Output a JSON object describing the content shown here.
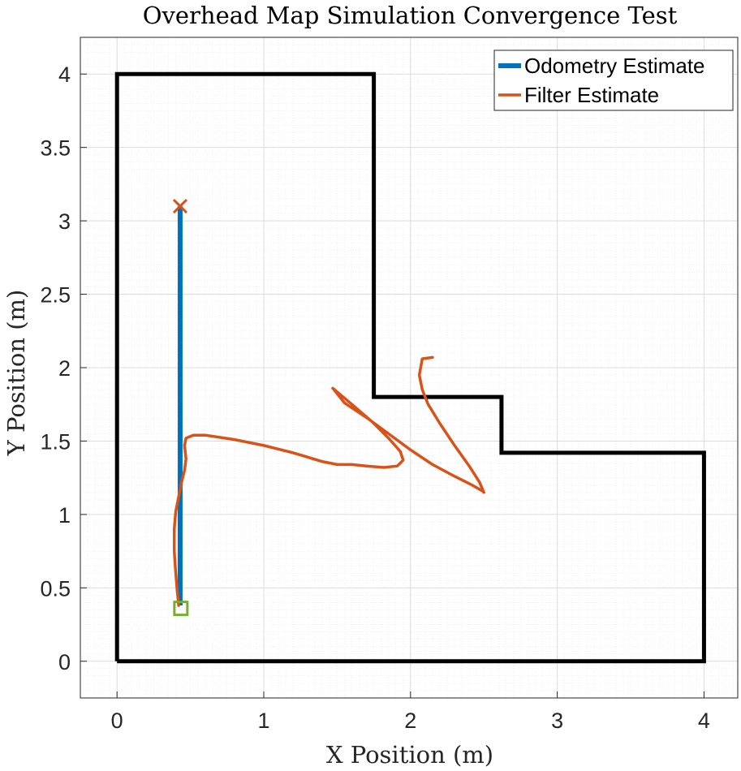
{
  "chart_data": {
    "type": "line",
    "title": "Overhead Map Simulation Convergence Test",
    "xlabel": "X Position (m)",
    "ylabel": "Y Position (m)",
    "xlim": [
      -0.25,
      4.23
    ],
    "ylim": [
      -0.25,
      4.25
    ],
    "xticks": [
      0,
      1,
      2,
      3,
      4
    ],
    "xtick_labels": [
      "0",
      "1",
      "2",
      "3",
      "4"
    ],
    "yticks": [
      0,
      0.5,
      1,
      1.5,
      2,
      2.5,
      3,
      3.5,
      4
    ],
    "ytick_labels": [
      "0",
      "0.5",
      "1",
      "1.5",
      "2",
      "2.5",
      "3",
      "3.5",
      "4"
    ],
    "grid": true,
    "minor_grid": true,
    "legend_position": "top-right",
    "map_outline": {
      "color": "#000000",
      "points": [
        [
          0,
          0
        ],
        [
          0,
          4
        ],
        [
          1.75,
          4
        ],
        [
          1.75,
          1.8
        ],
        [
          2.62,
          1.8
        ],
        [
          2.62,
          1.42
        ],
        [
          4,
          1.42
        ],
        [
          4,
          0
        ],
        [
          0,
          0
        ]
      ]
    },
    "series": [
      {
        "name": "Odometry Estimate",
        "color": "#0072BD",
        "x": [
          0.43,
          0.43
        ],
        "y": [
          0.38,
          3.1
        ]
      },
      {
        "name": "Filter Estimate",
        "color": "#D95319",
        "x": [
          2.15,
          2.08,
          2.06,
          2.08,
          2.12,
          2.2,
          2.3,
          2.4,
          2.47,
          2.5,
          2.49,
          2.42,
          2.3,
          2.15,
          2.0,
          1.85,
          1.7,
          1.55,
          1.47,
          1.6,
          1.74,
          1.85,
          1.93,
          1.95,
          1.91,
          1.82,
          1.7,
          1.6,
          1.5,
          1.4,
          1.3,
          1.2,
          1.0,
          0.8,
          0.6,
          0.52,
          0.47,
          0.46,
          0.47,
          0.46,
          0.44,
          0.42,
          0.4,
          0.39,
          0.39,
          0.4,
          0.41,
          0.42
        ],
        "y": [
          2.07,
          2.06,
          1.95,
          1.85,
          1.75,
          1.62,
          1.47,
          1.33,
          1.22,
          1.15,
          1.16,
          1.2,
          1.26,
          1.34,
          1.44,
          1.55,
          1.66,
          1.76,
          1.86,
          1.75,
          1.63,
          1.52,
          1.43,
          1.37,
          1.33,
          1.32,
          1.33,
          1.34,
          1.34,
          1.36,
          1.39,
          1.42,
          1.47,
          1.51,
          1.54,
          1.54,
          1.52,
          1.47,
          1.38,
          1.3,
          1.22,
          1.12,
          1.02,
          0.9,
          0.75,
          0.6,
          0.48,
          0.38
        ]
      }
    ],
    "start_marker": {
      "shape": "square",
      "color": "#77AC30",
      "x": 0.435,
      "y": 0.36
    },
    "end_marker": {
      "shape": "x",
      "color": "#D95319",
      "x": 0.43,
      "y": 3.1
    }
  }
}
